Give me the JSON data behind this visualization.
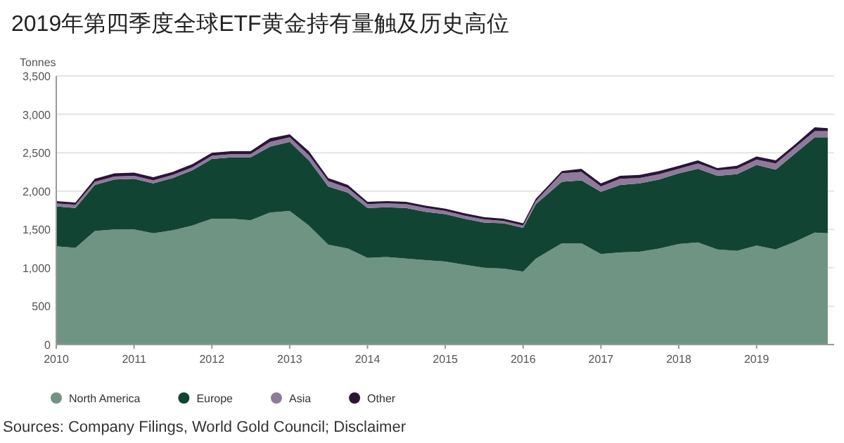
{
  "chart_data": {
    "type": "area",
    "stacked": true,
    "title": "2019年第四季度全球ETF黄金持有量触及历史高位",
    "ylabel": "Tonnes",
    "x": [
      "2010-01",
      "2010-04",
      "2010-07",
      "2010-10",
      "2011-01",
      "2011-04",
      "2011-07",
      "2011-10",
      "2012-01",
      "2012-04",
      "2012-07",
      "2012-10",
      "2013-01",
      "2013-04",
      "2013-07",
      "2013-10",
      "2014-01",
      "2014-04",
      "2014-07",
      "2014-10",
      "2015-01",
      "2015-04",
      "2015-07",
      "2015-10",
      "2016-01",
      "2016-03",
      "2016-07",
      "2016-10",
      "2017-01",
      "2017-04",
      "2017-07",
      "2017-10",
      "2018-01",
      "2018-04",
      "2018-07",
      "2018-10",
      "2019-01",
      "2019-04",
      "2019-07",
      "2019-10",
      "2019-12"
    ],
    "series": [
      {
        "name": "North America",
        "color": "#6f9483",
        "values": [
          1280,
          1260,
          1480,
          1500,
          1500,
          1450,
          1490,
          1550,
          1640,
          1640,
          1620,
          1720,
          1740,
          1550,
          1300,
          1250,
          1130,
          1140,
          1120,
          1100,
          1080,
          1040,
          1000,
          990,
          950,
          1120,
          1320,
          1320,
          1180,
          1200,
          1210,
          1250,
          1310,
          1330,
          1240,
          1220,
          1290,
          1240,
          1340,
          1460,
          1450
        ]
      },
      {
        "name": "Europe",
        "color": "#124434",
        "values": [
          520,
          520,
          600,
          650,
          660,
          650,
          680,
          720,
          780,
          800,
          820,
          860,
          900,
          850,
          760,
          730,
          650,
          650,
          660,
          630,
          620,
          600,
          590,
          590,
          570,
          710,
          800,
          820,
          810,
          880,
          890,
          900,
          920,
          960,
          960,
          1000,
          1050,
          1040,
          1150,
          1240,
          1250
        ]
      },
      {
        "name": "Asia",
        "color": "#8e7a9a",
        "values": [
          40,
          40,
          40,
          40,
          40,
          40,
          40,
          40,
          40,
          40,
          40,
          60,
          60,
          70,
          70,
          60,
          50,
          50,
          50,
          50,
          40,
          40,
          40,
          30,
          30,
          40,
          110,
          110,
          70,
          80,
          70,
          70,
          60,
          70,
          70,
          70,
          70,
          80,
          80,
          80,
          80
        ]
      },
      {
        "name": "Other",
        "color": "#2a1538",
        "values": [
          30,
          30,
          40,
          40,
          40,
          40,
          40,
          40,
          40,
          40,
          40,
          50,
          40,
          50,
          40,
          40,
          30,
          30,
          30,
          30,
          30,
          30,
          30,
          30,
          30,
          30,
          30,
          40,
          40,
          40,
          40,
          40,
          40,
          40,
          30,
          40,
          40,
          40,
          40,
          50,
          40
        ]
      }
    ],
    "xlim": [
      "2010-01-01",
      "2019-12-31"
    ],
    "xticks": [
      "2010",
      "2011",
      "2012",
      "2013",
      "2014",
      "2015",
      "2016",
      "2017",
      "2018",
      "2019"
    ],
    "ylim": [
      0,
      3500
    ],
    "yticks": [
      0,
      500,
      {
        "value": 1000,
        "label": "1,000"
      },
      {
        "value": 1500,
        "label": "1,500"
      },
      {
        "value": 2000,
        "label": "2,000"
      },
      {
        "value": 2500,
        "label": "2,500"
      },
      {
        "value": 3000,
        "label": "3,000"
      },
      {
        "value": 3500,
        "label": "3,500"
      }
    ],
    "grid": "y",
    "legend": "bottom",
    "annotations": [
      "Sources: Company Filings, World Gold Council; Disclaimer"
    ]
  }
}
